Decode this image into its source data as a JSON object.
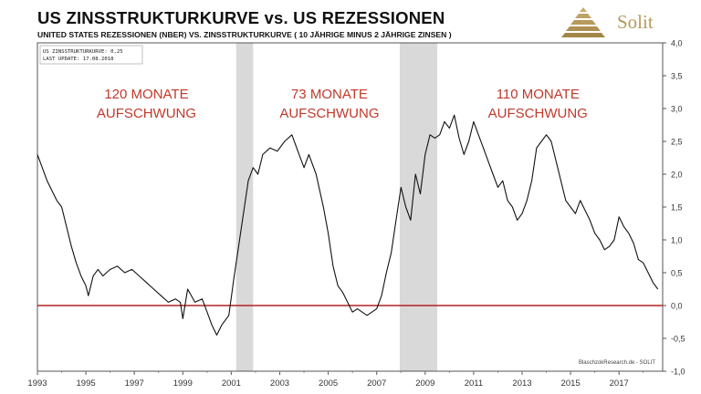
{
  "header": {
    "title": "US ZINSSTRUKTURKURVE vs. US REZESSIONEN",
    "subtitle": "UNITED STATES REZESSIONEN (NBER) VS. ZINSSTRUKTURKURVE ( 10 JÄHRIGE MINUS 2 JÄHRIGE ZINSEN )"
  },
  "logo": {
    "text": "Solit",
    "icon": "pyramid-icon",
    "color": "#b79a5c"
  },
  "info_box": {
    "line1": "US ZINSSTRUKTURKURVE:  0,25",
    "line2": "LAST UPDATE: 17.08.2018"
  },
  "source_label": "BlaschzokResearch.de  -  SOLIT",
  "colors": {
    "line": "#111111",
    "zero_line": "#b22222",
    "recession": "#d9d9d9",
    "annotation": "#c0392b"
  },
  "annotations": [
    {
      "line1": "120 MONATE",
      "line2": "AUFSCHWUNG",
      "x": 1997.5,
      "y": 3.1
    },
    {
      "line1": "73 MONATE",
      "line2": "AUFSCHWUNG",
      "x": 2005.05,
      "y": 3.1
    },
    {
      "line1": "110 MONATE",
      "line2": "AUFSCHWUNG",
      "x": 2013.65,
      "y": 3.1
    }
  ],
  "chart_data": {
    "type": "line",
    "title": "US ZINSSTRUKTURKURVE vs. US REZESSIONEN",
    "xlim": [
      1993.0,
      2018.8
    ],
    "ylim": [
      -1.0,
      4.0
    ],
    "x_ticks": [
      "1993",
      "1995",
      "1997",
      "1999",
      "2001",
      "2003",
      "2005",
      "2007",
      "2009",
      "2011",
      "2013",
      "2015",
      "2017"
    ],
    "y_ticks": [
      "4,0",
      "3,5",
      "3,0",
      "2,5",
      "2,0",
      "1,5",
      "1,0",
      "0,5",
      "0,0",
      "-0,5",
      "-1,0"
    ],
    "y_axis_position": "right",
    "recessions": [
      {
        "start": 2001.2,
        "end": 2001.9
      },
      {
        "start": 2007.95,
        "end": 2009.5
      }
    ],
    "reference_line": {
      "y": 0.0
    },
    "series": [
      {
        "x": [
          1993.0,
          1993.2,
          1993.4,
          1993.6,
          1993.8,
          1994.0,
          1994.2,
          1994.4,
          1994.6,
          1994.8,
          1995.0,
          1995.1,
          1995.3,
          1995.5,
          1995.7,
          1996.0,
          1996.3,
          1996.6,
          1996.9,
          1997.2,
          1997.5,
          1997.8,
          1998.1,
          1998.4,
          1998.7,
          1998.9,
          1999.0,
          1999.2,
          1999.5,
          1999.8,
          2000.0,
          2000.2,
          2000.4,
          2000.6,
          2000.9,
          2001.1,
          2001.3,
          2001.5,
          2001.7,
          2001.9,
          2002.1,
          2002.3,
          2002.6,
          2002.9,
          2003.2,
          2003.5,
          2003.8,
          2004.0,
          2004.2,
          2004.5,
          2004.8,
          2005.0,
          2005.2,
          2005.4,
          2005.6,
          2005.8,
          2006.0,
          2006.2,
          2006.4,
          2006.6,
          2006.8,
          2007.0,
          2007.2,
          2007.4,
          2007.6,
          2007.8,
          2008.0,
          2008.2,
          2008.4,
          2008.6,
          2008.8,
          2009.0,
          2009.2,
          2009.4,
          2009.6,
          2009.8,
          2010.0,
          2010.2,
          2010.4,
          2010.6,
          2010.8,
          2011.0,
          2011.2,
          2011.4,
          2011.6,
          2011.8,
          2012.0,
          2012.2,
          2012.4,
          2012.6,
          2012.8,
          2013.0,
          2013.2,
          2013.4,
          2013.6,
          2013.8,
          2014.0,
          2014.2,
          2014.4,
          2014.6,
          2014.8,
          2015.0,
          2015.2,
          2015.4,
          2015.6,
          2015.8,
          2016.0,
          2016.2,
          2016.4,
          2016.6,
          2016.8,
          2017.0,
          2017.2,
          2017.4,
          2017.6,
          2017.8,
          2018.0,
          2018.2,
          2018.4,
          2018.6
        ],
        "values": [
          2.3,
          2.1,
          1.9,
          1.75,
          1.6,
          1.5,
          1.2,
          0.9,
          0.65,
          0.45,
          0.3,
          0.15,
          0.45,
          0.55,
          0.45,
          0.55,
          0.6,
          0.5,
          0.55,
          0.45,
          0.35,
          0.25,
          0.15,
          0.05,
          0.1,
          0.05,
          -0.2,
          0.25,
          0.05,
          0.1,
          -0.1,
          -0.3,
          -0.45,
          -0.3,
          -0.15,
          0.4,
          0.9,
          1.4,
          1.9,
          2.1,
          2.0,
          2.3,
          2.4,
          2.35,
          2.5,
          2.6,
          2.3,
          2.1,
          2.3,
          2.0,
          1.5,
          1.1,
          0.6,
          0.3,
          0.2,
          0.05,
          -0.1,
          -0.05,
          -0.1,
          -0.15,
          -0.1,
          -0.05,
          0.15,
          0.5,
          0.8,
          1.3,
          1.8,
          1.5,
          1.3,
          2.0,
          1.7,
          2.3,
          2.6,
          2.55,
          2.6,
          2.8,
          2.7,
          2.9,
          2.55,
          2.3,
          2.5,
          2.8,
          2.6,
          2.4,
          2.2,
          2.0,
          1.8,
          1.9,
          1.6,
          1.5,
          1.3,
          1.4,
          1.6,
          1.9,
          2.4,
          2.5,
          2.6,
          2.5,
          2.2,
          1.9,
          1.6,
          1.5,
          1.4,
          1.6,
          1.45,
          1.3,
          1.1,
          1.0,
          0.85,
          0.9,
          1.0,
          1.35,
          1.2,
          1.1,
          0.95,
          0.7,
          0.65,
          0.5,
          0.35,
          0.25
        ]
      }
    ]
  }
}
